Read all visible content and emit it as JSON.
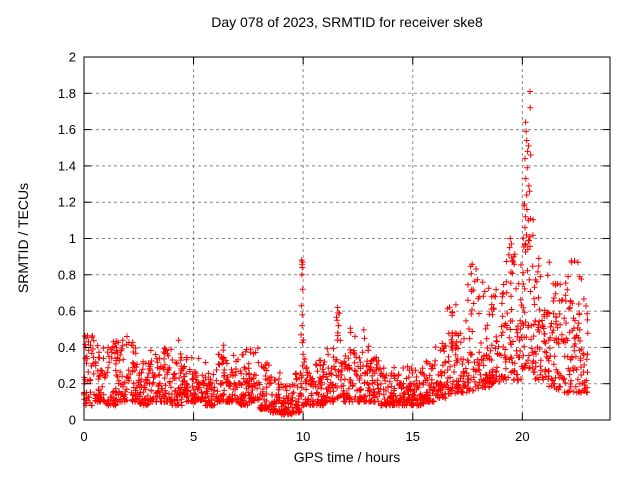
{
  "window": {
    "background": "#ffffff"
  },
  "chart_data": {
    "type": "scatter",
    "title": "Day 078 of 2023, SRMTID for receiver ske8",
    "xlabel": "GPS time / hours",
    "ylabel": "SRMTID / TECUs",
    "xlim": [
      0,
      24
    ],
    "ylim": [
      0,
      2
    ],
    "xticks": [
      {
        "v": 0,
        "label": "0"
      },
      {
        "v": 5,
        "label": "5"
      },
      {
        "v": 10,
        "label": "10"
      },
      {
        "v": 15,
        "label": "15"
      },
      {
        "v": 20,
        "label": "20"
      }
    ],
    "yticks": [
      {
        "v": 0,
        "label": "0"
      },
      {
        "v": 0.2,
        "label": "0.2"
      },
      {
        "v": 0.4,
        "label": "0.4"
      },
      {
        "v": 0.6,
        "label": "0.6"
      },
      {
        "v": 0.8,
        "label": "0.8"
      },
      {
        "v": 1,
        "label": "1"
      },
      {
        "v": 1.2,
        "label": "1.2"
      },
      {
        "v": 1.4,
        "label": "1.4"
      },
      {
        "v": 1.6,
        "label": "1.6"
      },
      {
        "v": 1.8,
        "label": "1.8"
      },
      {
        "v": 2,
        "label": "2"
      }
    ],
    "grid": true,
    "legend": "none",
    "marker": {
      "shape": "plus",
      "color": "#ff0000",
      "size": 3
    },
    "colors": {
      "points": "#ff0000",
      "grid": "#888888",
      "axis": "#000000",
      "text": "#000000"
    },
    "data_x_range": [
      0,
      23
    ],
    "density_bands_comment": "each band = [hour_start, hour_end, n_points, y_low, y_high, skew_k] read from plot; points cluster toward y_low",
    "bands": [
      [
        0.0,
        0.5,
        45,
        0.08,
        0.47,
        2.0
      ],
      [
        0.5,
        1.0,
        45,
        0.1,
        0.42,
        2.0
      ],
      [
        1.0,
        1.5,
        45,
        0.08,
        0.45,
        2.0
      ],
      [
        1.5,
        2.0,
        45,
        0.1,
        0.46,
        2.0
      ],
      [
        2.0,
        2.5,
        45,
        0.1,
        0.43,
        2.2
      ],
      [
        2.5,
        3.0,
        45,
        0.08,
        0.33,
        2.0
      ],
      [
        3.0,
        3.5,
        45,
        0.1,
        0.4,
        2.2
      ],
      [
        3.5,
        4.0,
        45,
        0.1,
        0.42,
        2.2
      ],
      [
        4.0,
        4.5,
        45,
        0.08,
        0.44,
        2.2
      ],
      [
        4.5,
        5.0,
        45,
        0.1,
        0.36,
        2.2
      ],
      [
        5.0,
        5.5,
        45,
        0.1,
        0.38,
        2.2
      ],
      [
        5.5,
        6.0,
        45,
        0.08,
        0.33,
        2.2
      ],
      [
        6.0,
        6.5,
        45,
        0.1,
        0.43,
        2.2
      ],
      [
        6.5,
        7.0,
        45,
        0.1,
        0.36,
        2.2
      ],
      [
        7.0,
        7.5,
        45,
        0.08,
        0.43,
        2.2
      ],
      [
        7.5,
        8.0,
        45,
        0.1,
        0.4,
        2.2
      ],
      [
        8.0,
        8.5,
        45,
        0.06,
        0.32,
        2.2
      ],
      [
        8.5,
        9.0,
        45,
        0.04,
        0.26,
        2.0
      ],
      [
        9.0,
        9.5,
        45,
        0.03,
        0.2,
        1.8
      ],
      [
        9.5,
        9.9,
        36,
        0.04,
        0.26,
        1.8
      ],
      [
        9.9,
        10.1,
        16,
        0.08,
        0.45,
        1.4
      ],
      [
        10.1,
        10.5,
        36,
        0.08,
        0.3,
        2.0
      ],
      [
        10.5,
        11.0,
        45,
        0.08,
        0.33,
        2.0
      ],
      [
        11.0,
        11.5,
        45,
        0.1,
        0.42,
        2.0
      ],
      [
        11.5,
        11.7,
        14,
        0.12,
        0.62,
        1.4
      ],
      [
        11.7,
        12.1,
        36,
        0.1,
        0.36,
        2.0
      ],
      [
        12.1,
        12.4,
        27,
        0.1,
        0.52,
        1.8
      ],
      [
        12.4,
        12.7,
        27,
        0.1,
        0.36,
        2.0
      ],
      [
        12.7,
        13.0,
        27,
        0.1,
        0.5,
        1.9
      ],
      [
        13.0,
        13.5,
        45,
        0.1,
        0.36,
        2.2
      ],
      [
        13.5,
        14.0,
        45,
        0.08,
        0.3,
        2.2
      ],
      [
        14.0,
        14.5,
        45,
        0.08,
        0.29,
        2.2
      ],
      [
        14.5,
        15.0,
        45,
        0.08,
        0.31,
        2.2
      ],
      [
        15.0,
        15.5,
        45,
        0.08,
        0.29,
        2.2
      ],
      [
        15.5,
        16.0,
        45,
        0.1,
        0.33,
        2.2
      ],
      [
        16.0,
        16.5,
        45,
        0.12,
        0.44,
        2.0
      ],
      [
        16.5,
        17.0,
        45,
        0.14,
        0.66,
        2.0
      ],
      [
        17.0,
        17.5,
        45,
        0.15,
        0.56,
        1.9
      ],
      [
        17.5,
        18.0,
        45,
        0.16,
        0.86,
        1.9
      ],
      [
        18.0,
        18.5,
        45,
        0.18,
        0.76,
        1.8
      ],
      [
        18.5,
        19.0,
        45,
        0.2,
        0.72,
        1.8
      ],
      [
        19.0,
        19.5,
        45,
        0.22,
        0.95,
        1.8
      ],
      [
        19.5,
        20.0,
        45,
        0.22,
        0.92,
        1.7
      ],
      [
        20.0,
        20.5,
        45,
        0.28,
        1.25,
        1.7
      ],
      [
        20.5,
        21.0,
        45,
        0.22,
        0.96,
        1.7
      ],
      [
        21.0,
        21.5,
        45,
        0.18,
        0.88,
        1.7
      ],
      [
        21.5,
        22.0,
        45,
        0.15,
        0.82,
        1.7
      ],
      [
        22.0,
        22.5,
        45,
        0.15,
        0.92,
        1.7
      ],
      [
        22.5,
        23.0,
        45,
        0.15,
        0.87,
        1.7
      ]
    ],
    "outliers": [
      [
        9.93,
        0.88
      ],
      [
        9.97,
        0.87
      ],
      [
        9.95,
        0.855
      ],
      [
        9.96,
        0.84
      ],
      [
        9.94,
        0.8
      ],
      [
        9.98,
        0.72
      ],
      [
        9.92,
        0.63
      ],
      [
        9.96,
        0.58
      ],
      [
        9.95,
        0.52
      ],
      [
        9.9,
        0.47
      ],
      [
        10.0,
        0.44
      ],
      [
        11.57,
        0.62
      ],
      [
        11.6,
        0.59
      ],
      [
        11.55,
        0.55
      ],
      [
        11.62,
        0.52
      ],
      [
        11.58,
        0.48
      ],
      [
        11.56,
        0.44
      ],
      [
        19.45,
        1.0
      ],
      [
        19.5,
        0.97
      ],
      [
        19.42,
        0.95
      ],
      [
        20.35,
        1.81
      ],
      [
        20.36,
        1.72
      ],
      [
        20.15,
        1.64
      ],
      [
        20.17,
        1.59
      ],
      [
        20.2,
        1.54
      ],
      [
        20.28,
        1.51
      ],
      [
        20.24,
        1.48
      ],
      [
        20.38,
        1.46
      ],
      [
        20.12,
        1.44
      ],
      [
        20.22,
        1.39
      ],
      [
        20.16,
        1.33
      ],
      [
        20.3,
        1.29
      ],
      [
        20.33,
        1.26
      ],
      [
        20.1,
        1.19
      ],
      [
        20.21,
        1.16
      ],
      [
        20.14,
        1.12
      ],
      [
        20.27,
        1.1
      ],
      [
        20.12,
        1.06
      ],
      [
        20.19,
        1.02
      ],
      [
        20.31,
        0.99
      ],
      [
        20.13,
        0.97
      ],
      [
        20.25,
        0.94
      ]
    ]
  }
}
